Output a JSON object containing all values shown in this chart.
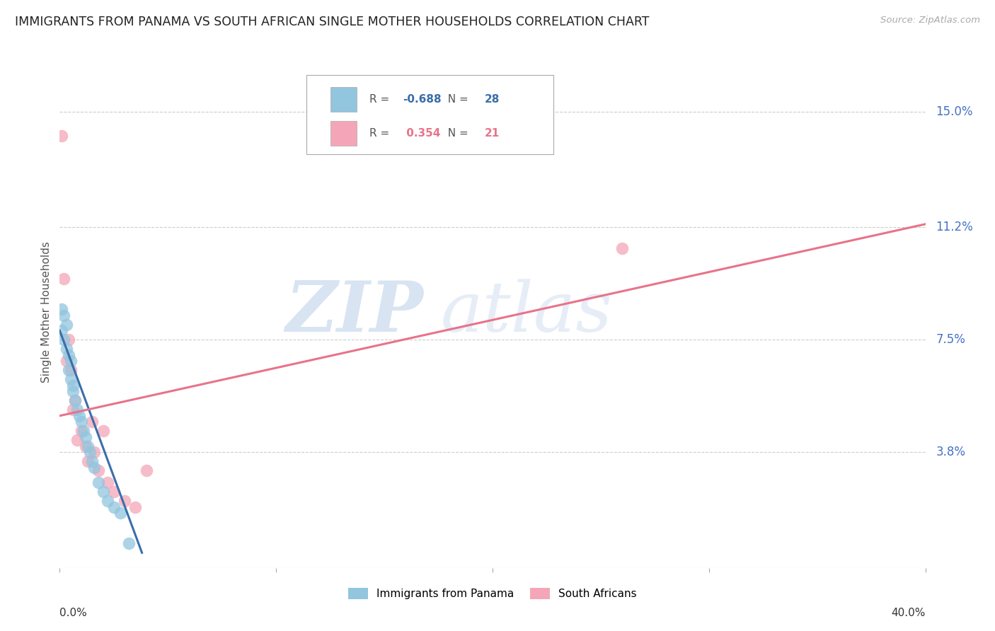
{
  "title": "IMMIGRANTS FROM PANAMA VS SOUTH AFRICAN SINGLE MOTHER HOUSEHOLDS CORRELATION CHART",
  "source": "Source: ZipAtlas.com",
  "ylabel": "Single Mother Households",
  "ytick_labels": [
    "3.8%",
    "7.5%",
    "11.2%",
    "15.0%"
  ],
  "ytick_values": [
    0.038,
    0.075,
    0.112,
    0.15
  ],
  "ylim": [
    0.0,
    0.168
  ],
  "xlim": [
    0.0,
    0.4
  ],
  "blue_R": "-0.688",
  "blue_N": "28",
  "pink_R": "0.354",
  "pink_N": "21",
  "blue_color": "#92c5de",
  "pink_color": "#f4a6b8",
  "blue_line_color": "#3a6eaa",
  "pink_line_color": "#e8738a",
  "legend_blue_label": "Immigrants from Panama",
  "legend_pink_label": "South Africans",
  "watermark_zip": "ZIP",
  "watermark_atlas": "atlas",
  "blue_scatter_x": [
    0.001,
    0.001,
    0.002,
    0.002,
    0.003,
    0.003,
    0.004,
    0.004,
    0.005,
    0.005,
    0.006,
    0.006,
    0.007,
    0.008,
    0.009,
    0.01,
    0.011,
    0.012,
    0.013,
    0.014,
    0.015,
    0.016,
    0.018,
    0.02,
    0.022,
    0.025,
    0.028,
    0.032
  ],
  "blue_scatter_y": [
    0.085,
    0.078,
    0.083,
    0.075,
    0.08,
    0.072,
    0.07,
    0.065,
    0.068,
    0.062,
    0.06,
    0.058,
    0.055,
    0.052,
    0.05,
    0.048,
    0.045,
    0.043,
    0.04,
    0.038,
    0.035,
    0.033,
    0.028,
    0.025,
    0.022,
    0.02,
    0.018,
    0.008
  ],
  "pink_scatter_x": [
    0.001,
    0.002,
    0.003,
    0.004,
    0.005,
    0.006,
    0.007,
    0.008,
    0.01,
    0.012,
    0.013,
    0.015,
    0.016,
    0.018,
    0.02,
    0.022,
    0.025,
    0.03,
    0.035,
    0.04,
    0.26
  ],
  "pink_scatter_y": [
    0.142,
    0.095,
    0.068,
    0.075,
    0.065,
    0.052,
    0.055,
    0.042,
    0.045,
    0.04,
    0.035,
    0.048,
    0.038,
    0.032,
    0.045,
    0.028,
    0.025,
    0.022,
    0.02,
    0.032,
    0.105
  ],
  "blue_trendline_x": [
    0.0,
    0.038
  ],
  "blue_trendline_y": [
    0.078,
    0.005
  ],
  "pink_trendline_x": [
    0.0,
    0.4
  ],
  "pink_trendline_y": [
    0.05,
    0.113
  ]
}
